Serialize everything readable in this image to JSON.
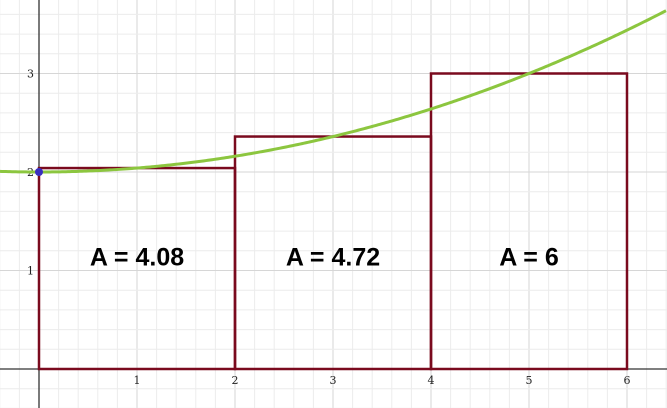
{
  "chart_data": {
    "type": "bar",
    "title": "",
    "xlabel": "",
    "ylabel": "",
    "xlim": [
      -0.4,
      6.4
    ],
    "ylim": [
      -0.4,
      3.75
    ],
    "grid": true,
    "x_ticks": [
      {
        "value": 1,
        "label": "1"
      },
      {
        "value": 2,
        "label": "2"
      },
      {
        "value": 3,
        "label": "3"
      },
      {
        "value": 4,
        "label": "4"
      },
      {
        "value": 5,
        "label": "5"
      },
      {
        "value": 6,
        "label": "6"
      }
    ],
    "y_ticks": [
      {
        "value": 1,
        "label": "1"
      },
      {
        "value": 2,
        "label": "2"
      },
      {
        "value": 3,
        "label": "3"
      }
    ],
    "curve": {
      "equation": "y = 2 + x^2 / 25",
      "color": "#8cc63f"
    },
    "point": {
      "x": 0,
      "y": 2,
      "color": "#3a2fbf"
    },
    "rectangles": [
      {
        "x_start": 0,
        "x_end": 2,
        "height": 2.04,
        "label": "A = 4.08"
      },
      {
        "x_start": 2,
        "x_end": 4,
        "height": 2.36,
        "label": "A = 4.72"
      },
      {
        "x_start": 4,
        "x_end": 6,
        "height": 3.0,
        "label": "A = 6"
      }
    ],
    "rect_color": "#7a0a1e",
    "grid_color_minor": "#ececec",
    "grid_color_major": "#d6d6d6",
    "axis_color": "#333333"
  }
}
